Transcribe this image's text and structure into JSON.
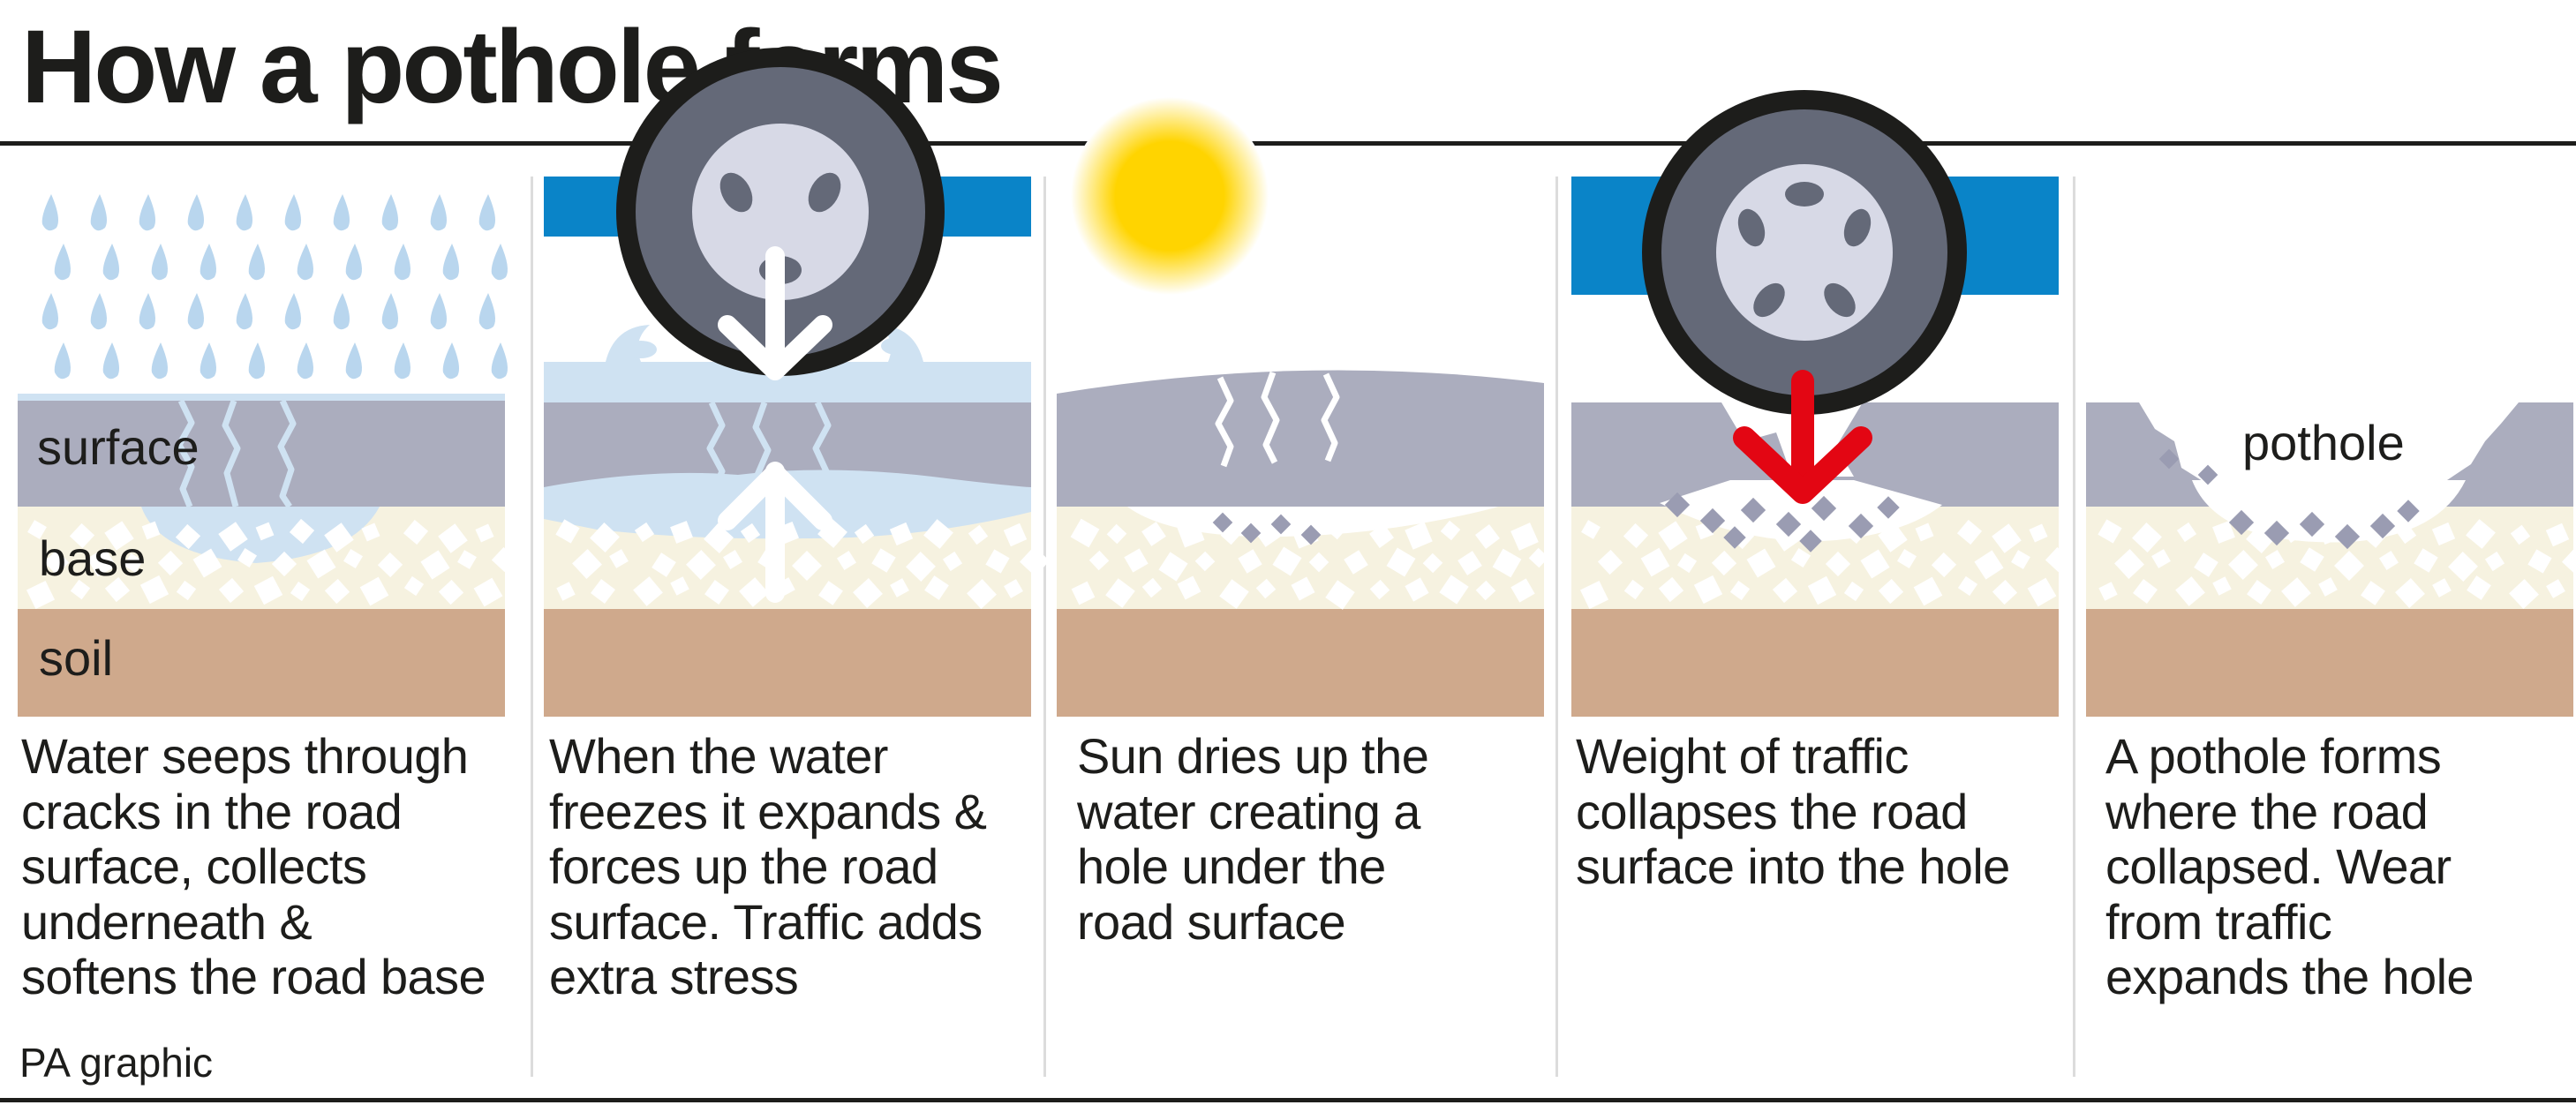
{
  "title": "How a pothole forms",
  "credit": "PA graphic",
  "layers": {
    "surface": "surface",
    "base": "base",
    "soil": "soil"
  },
  "pothole_label": "pothole",
  "colors": {
    "surface": "#abadbe",
    "base": "#f6f2e0",
    "soil": "#cfa98c",
    "water": "#cfe2f2",
    "rain": "#b9d6ee",
    "car_body": "#0a84c8",
    "tyre": "#1d1d1b",
    "tyre_inner": "#646978",
    "hub": "#d7d9e6",
    "sun": "#ffd400",
    "force_arrow": "#e30613",
    "stone": "#9a9cb2"
  },
  "steps": [
    {
      "caption": "Water seeps through\ncracks in the road\nsurface, collects\nunderneath &\nsoftens the road base"
    },
    {
      "caption": "When the water\nfreezes it expands &\nforces up the road\nsurface. Traffic adds\nextra stress"
    },
    {
      "caption": "Sun dries up the\nwater creating a\nhole under the\nroad surface"
    },
    {
      "caption": "Weight of traffic\ncollapses the road\nsurface into the hole"
    },
    {
      "caption": "A pothole forms\nwhere the road\ncollapsed. Wear\nfrom traffic\nexpands the hole"
    }
  ]
}
